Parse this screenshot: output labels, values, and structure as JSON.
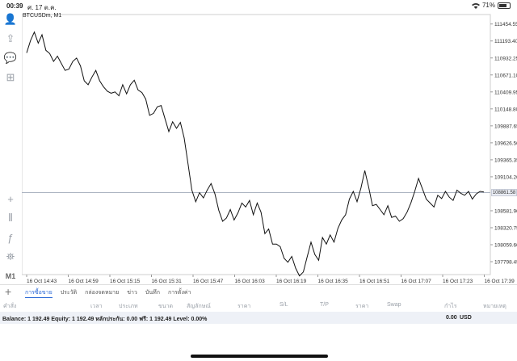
{
  "status": {
    "time": "00:39",
    "date": "ศ. 17 ต.ค.",
    "battery": "71%",
    "battery_level": 0.71
  },
  "chart": {
    "symbol": "BTCUSDm, M1",
    "current_price": "108861.58",
    "price_labels": [
      "111454.55",
      "111193.40",
      "110932.25",
      "110671.10",
      "110409.95",
      "110148.80",
      "109887.65",
      "109626.50",
      "109365.35",
      "109104.20",
      "108581.90",
      "108320.75",
      "108059.60",
      "107798.45"
    ],
    "time_labels": [
      "16 Oct 14:43",
      "16 Oct 14:59",
      "16 Oct 15:15",
      "16 Oct 15:31",
      "16 Oct 15:47",
      "16 Oct 16:03",
      "16 Oct 16:19",
      "16 Oct 16:35",
      "16 Oct 16:51",
      "16 Oct 17:07",
      "16 Oct 17:23",
      "16 Oct 17:39"
    ]
  },
  "chart_data": {
    "type": "line",
    "title": "BTCUSDm, M1",
    "ylim": [
      107600,
      111600
    ],
    "series": [
      {
        "values": [
          111010,
          111200,
          111330,
          111160,
          111290,
          111050,
          111000,
          110880,
          110960,
          110850,
          110740,
          110760,
          110880,
          110930,
          110810,
          110580,
          110520,
          110640,
          110740,
          110580,
          110490,
          110420,
          110390,
          110410,
          110350,
          110520,
          110380,
          110520,
          110590,
          110440,
          110400,
          110300,
          110050,
          110080,
          110180,
          110200,
          110000,
          109800,
          109950,
          109850,
          109940,
          109700,
          109300,
          108900,
          108720,
          108860,
          108780,
          108900,
          109000,
          108840,
          108590,
          108420,
          108470,
          108600,
          108440,
          108550,
          108700,
          108640,
          108740,
          108520,
          108700,
          108560,
          108230,
          108300,
          108070,
          108070,
          108030,
          107850,
          107790,
          107880,
          107700,
          107580,
          107640,
          107870,
          108100,
          107910,
          107820,
          108170,
          108070,
          108210,
          108100,
          108310,
          108440,
          108520,
          108760,
          108880,
          108720,
          108930,
          109200,
          108950,
          108660,
          108680,
          108600,
          108520,
          108660,
          108480,
          108500,
          108420,
          108460,
          108560,
          108700,
          108880,
          109080,
          108920,
          108760,
          108700,
          108640,
          108820,
          108770,
          108880,
          108790,
          108740,
          108900,
          108850,
          108820,
          108880,
          108760,
          108840,
          108880,
          108870
        ]
      }
    ],
    "grid": true
  },
  "sidebar": [
    {
      "name": "profile-icon",
      "glyph": "👤"
    },
    {
      "name": "trade-icon",
      "glyph": "⇪"
    },
    {
      "name": "chat-icon",
      "glyph": "💬"
    },
    {
      "name": "new-order-icon",
      "glyph": "⊞"
    },
    {
      "name": "crosshair-icon",
      "glyph": "+"
    },
    {
      "name": "candles-icon",
      "glyph": "⫴"
    },
    {
      "name": "indicators-icon",
      "glyph": "ƒ"
    },
    {
      "name": "objects-icon",
      "glyph": "⛯"
    },
    {
      "name": "timeframe-label",
      "glyph": "M1"
    }
  ],
  "tabs": {
    "items": [
      "การซื้อขาย",
      "ประวัติ",
      "กล่องจดหมาย",
      "ข่าว",
      "บันทึก",
      "การตั้งค่า"
    ],
    "active": 0
  },
  "table_headers": [
    "คำสั่ง",
    "เวลา",
    "ประเภท",
    "ขนาด",
    "สัญลักษณ์",
    "ราคา",
    "S/L",
    "T/P",
    "ราคา",
    "Swap",
    "กำไร",
    "หมายเหตุ"
  ],
  "balance": {
    "text": "Balance: 1 192.49 Equity: 1 192.49 หลักประกัน: 0.00 ฟรี: 1 192.49 Level: 0.00%",
    "profit": "0.00",
    "currency": "USD"
  }
}
